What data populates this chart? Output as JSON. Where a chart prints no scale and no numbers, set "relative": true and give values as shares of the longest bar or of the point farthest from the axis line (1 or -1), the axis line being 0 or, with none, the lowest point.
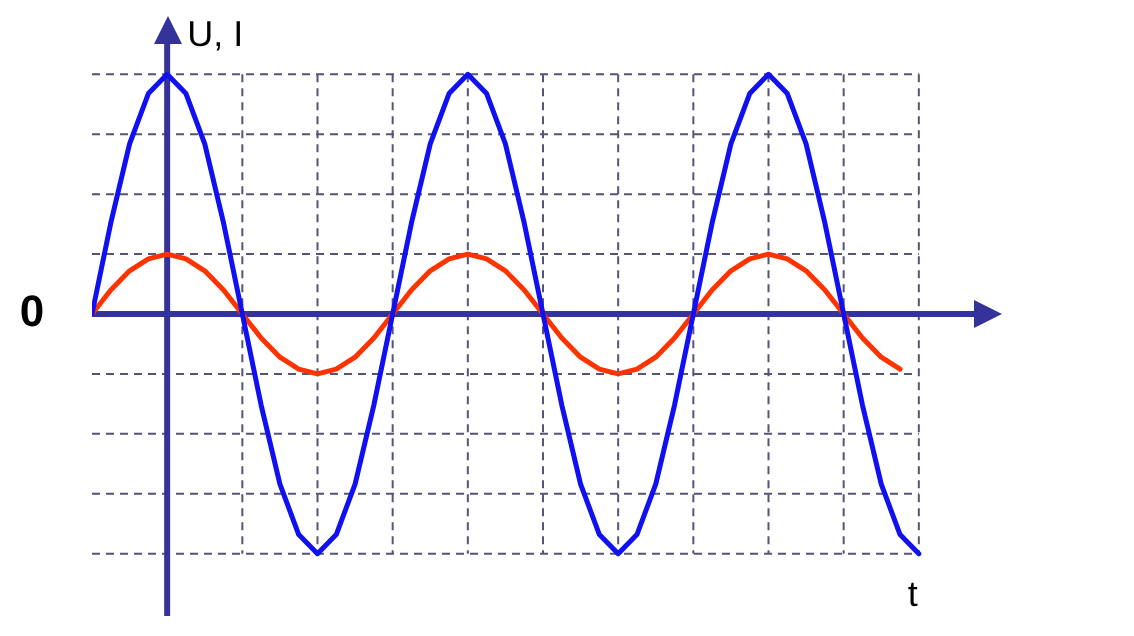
{
  "chart_data": {
    "type": "line",
    "xlabel": "t",
    "ylabel": "U, I",
    "relative": true,
    "grid": true,
    "marker": "none",
    "line_style": "solid",
    "annotations": [
      "0"
    ],
    "ref_lines": [
      {
        "axis": "y",
        "value": 0,
        "color": "#333399"
      }
    ],
    "categories": [
      null,
      null,
      null,
      null,
      null,
      null,
      null,
      null,
      null,
      null,
      null,
      null,
      null,
      null,
      null,
      null,
      null,
      null,
      null,
      null,
      null,
      null,
      null,
      null,
      null,
      null,
      null,
      null,
      null,
      null,
      null,
      null,
      null,
      null,
      null,
      null,
      null,
      null,
      null,
      null,
      null,
      null,
      null,
      null,
      null
    ],
    "series": [
      {
        "color": "#1010f0",
        "values": [
          0,
          0.38,
          0.71,
          0.92,
          1,
          0.92,
          0.71,
          0.38,
          0,
          -0.38,
          -0.71,
          -0.92,
          -1,
          -0.92,
          -0.71,
          -0.38,
          0,
          0.38,
          0.71,
          0.92,
          1,
          0.92,
          0.71,
          0.38,
          0,
          -0.38,
          -0.71,
          -0.92,
          -1,
          -0.92,
          -0.71,
          -0.38,
          0,
          0.38,
          0.71,
          0.92,
          1,
          0.92,
          0.71,
          0.38,
          0,
          -0.38,
          -0.71,
          -0.92,
          -1
        ]
      },
      {
        "color": "#ff3300",
        "values": [
          0,
          0.1,
          0.18,
          0.23,
          0.25,
          0.23,
          0.18,
          0.1,
          0,
          -0.1,
          -0.18,
          -0.23,
          -0.25,
          -0.23,
          -0.18,
          -0.1,
          0,
          0.1,
          0.18,
          0.23,
          0.25,
          0.23,
          0.18,
          0.1,
          0,
          -0.1,
          -0.18,
          -0.23,
          -0.25,
          -0.23,
          -0.18,
          -0.1,
          0,
          0.1,
          0.18,
          0.23,
          0.25,
          0.23,
          0.18,
          0.1,
          0,
          -0.1,
          -0.18,
          -0.23,
          null
        ]
      }
    ]
  }
}
